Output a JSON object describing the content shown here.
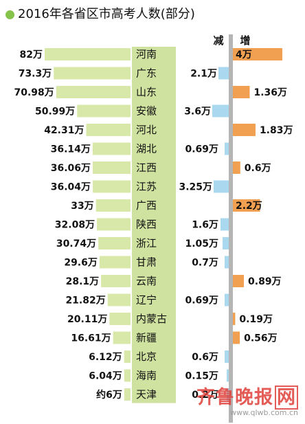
{
  "chart_data": {
    "type": "bar",
    "title": "2016年各省区市高考人数(部分)",
    "columns": {
      "decrease": "减",
      "increase": "增"
    },
    "rows": [
      {
        "province": "河南",
        "value": 82,
        "label": "82万",
        "change": 4,
        "change_label": "4万"
      },
      {
        "province": "广东",
        "value": 73.3,
        "label": "73.3万",
        "change": -2.1,
        "change_label": "2.1万"
      },
      {
        "province": "山东",
        "value": 70.98,
        "label": "70.98万",
        "change": 1.36,
        "change_label": "1.36万"
      },
      {
        "province": "安徽",
        "value": 50.99,
        "label": "50.99万",
        "change": -3.6,
        "change_label": "3.6万"
      },
      {
        "province": "河北",
        "value": 42.31,
        "label": "42.31万",
        "change": 1.83,
        "change_label": "1.83万"
      },
      {
        "province": "湖北",
        "value": 36.14,
        "label": "36.14万",
        "change": -0.69,
        "change_label": "0.69万"
      },
      {
        "province": "江西",
        "value": 36.06,
        "label": "36.06万",
        "change": 0.6,
        "change_label": "0.6万"
      },
      {
        "province": "江苏",
        "value": 36.04,
        "label": "36.04万",
        "change": -3.25,
        "change_label": "3.25万"
      },
      {
        "province": "广西",
        "value": 33,
        "label": "33万",
        "change": 2.2,
        "change_label": "2.2万"
      },
      {
        "province": "陕西",
        "value": 32.08,
        "label": "32.08万",
        "change": -1.6,
        "change_label": "1.6万"
      },
      {
        "province": "浙江",
        "value": 30.74,
        "label": "30.74万",
        "change": -1.05,
        "change_label": "1.05万"
      },
      {
        "province": "甘肃",
        "value": 29.6,
        "label": "29.6万",
        "change": -0.7,
        "change_label": "0.7万"
      },
      {
        "province": "云南",
        "value": 28.1,
        "label": "28.1万",
        "change": 0.89,
        "change_label": "0.89万"
      },
      {
        "province": "辽宁",
        "value": 21.82,
        "label": "21.82万",
        "change": -0.69,
        "change_label": "0.69万"
      },
      {
        "province": "内蒙古",
        "value": 20.11,
        "label": "20.11万",
        "change": 0.19,
        "change_label": "0.19万"
      },
      {
        "province": "新疆",
        "value": 16.61,
        "label": "16.61万",
        "change": 0.56,
        "change_label": "0.56万"
      },
      {
        "province": "北京",
        "value": 6.12,
        "label": "6.12万",
        "change": -0.6,
        "change_label": "0.6万"
      },
      {
        "province": "海南",
        "value": 6.04,
        "label": "6.04万",
        "change": -0.15,
        "change_label": "0.15万"
      },
      {
        "province": "天津",
        "value": 6,
        "label": "约6万",
        "change": -0.2,
        "change_label": "0.2万"
      }
    ],
    "colors": {
      "total_bar": "#d8e8a8",
      "province_band": "#d0e2a0",
      "decrease_bar": "#a9d8ef",
      "increase_bar": "#f0a050",
      "axis": "#b5b5b5",
      "title_dot": "#86c34a"
    }
  },
  "watermark": {
    "logo_text": "齐鲁晚报",
    "logo_box": "网",
    "url": "www.qlwb.com.cn"
  }
}
